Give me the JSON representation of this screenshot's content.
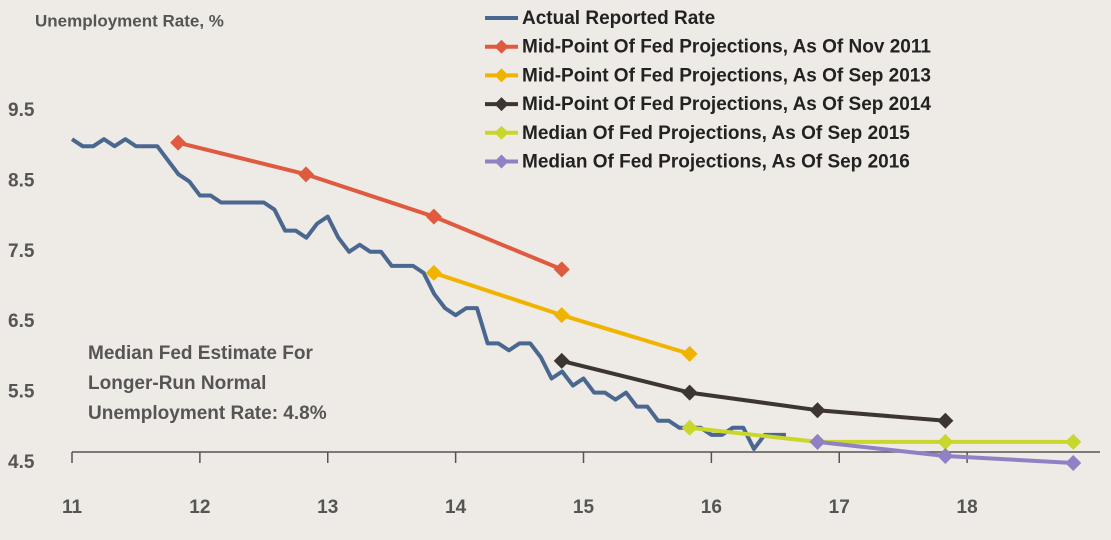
{
  "chart_data": {
    "type": "line",
    "y_label": "Unemployment Rate, %",
    "annotation": [
      "Median Fed Estimate For",
      "Longer-Run Normal",
      "Unemployment Rate: 4.8%"
    ],
    "xlim": [
      11,
      19
    ],
    "xticks": [
      11,
      12,
      13,
      14,
      15,
      16,
      17,
      18
    ],
    "ylim": [
      4.5,
      9.5
    ],
    "yticks": [
      4.5,
      5.5,
      6.5,
      7.5,
      8.5,
      9.5
    ],
    "series": [
      {
        "name": "Actual Reported Rate",
        "color": "#4a6790",
        "marker": "none",
        "x": [
          11,
          11.083,
          11.167,
          11.25,
          11.333,
          11.417,
          11.5,
          11.583,
          11.667,
          11.75,
          11.833,
          11.917,
          12,
          12.083,
          12.167,
          12.25,
          12.333,
          12.417,
          12.5,
          12.583,
          12.667,
          12.75,
          12.833,
          12.917,
          13,
          13.083,
          13.167,
          13.25,
          13.333,
          13.417,
          13.5,
          13.583,
          13.667,
          13.75,
          13.833,
          13.917,
          14,
          14.083,
          14.167,
          14.25,
          14.333,
          14.417,
          14.5,
          14.583,
          14.667,
          14.75,
          14.833,
          14.917,
          15,
          15.083,
          15.167,
          15.25,
          15.333,
          15.417,
          15.5,
          15.583,
          15.667,
          15.75,
          15.833,
          15.917,
          16,
          16.083,
          16.167,
          16.25,
          16.333,
          16.417,
          16.5,
          16.583
        ],
        "values": [
          9.1,
          9.0,
          9.0,
          9.1,
          9.0,
          9.1,
          9.0,
          9.0,
          9.0,
          8.8,
          8.6,
          8.5,
          8.3,
          8.3,
          8.2,
          8.2,
          8.2,
          8.2,
          8.2,
          8.1,
          7.8,
          7.8,
          7.7,
          7.9,
          8.0,
          7.7,
          7.5,
          7.6,
          7.5,
          7.5,
          7.3,
          7.3,
          7.3,
          7.2,
          6.9,
          6.7,
          6.6,
          6.7,
          6.7,
          6.2,
          6.2,
          6.1,
          6.2,
          6.2,
          6.0,
          5.7,
          5.8,
          5.6,
          5.7,
          5.5,
          5.5,
          5.4,
          5.5,
          5.3,
          5.3,
          5.1,
          5.1,
          5.0,
          5.0,
          5.0,
          4.9,
          4.9,
          5.0,
          5.0,
          4.7,
          4.9,
          4.9,
          4.9
        ]
      },
      {
        "name": "Mid-Point Of Fed Projections, As Of Nov 2011",
        "color": "#e05a3f",
        "marker": "diamond",
        "x": [
          11.83,
          12.83,
          13.83,
          14.83
        ],
        "values": [
          9.05,
          8.6,
          8.0,
          7.25
        ]
      },
      {
        "name": "Mid-Point Of Fed Projections, As Of Sep 2013",
        "color": "#f0b400",
        "marker": "diamond",
        "x": [
          13.83,
          14.83,
          15.83
        ],
        "values": [
          7.2,
          6.6,
          6.05
        ]
      },
      {
        "name": "Mid-Point Of Fed Projections, As Of Sep 2014",
        "color": "#3d3532",
        "marker": "diamond",
        "x": [
          14.83,
          15.83,
          16.83,
          17.83
        ],
        "values": [
          5.95,
          5.5,
          5.25,
          5.1
        ]
      },
      {
        "name": "Median Of Fed Projections, As Of Sep 2015",
        "color": "#c9d62c",
        "marker": "diamond",
        "x": [
          15.83,
          16.83,
          17.83,
          18.83
        ],
        "values": [
          5.0,
          4.8,
          4.8,
          4.8
        ]
      },
      {
        "name": "Median Of Fed Projections, As Of Sep 2016",
        "color": "#9080c4",
        "marker": "diamond",
        "x": [
          16.83,
          17.83,
          18.83
        ],
        "values": [
          4.8,
          4.6,
          4.5
        ]
      }
    ]
  }
}
